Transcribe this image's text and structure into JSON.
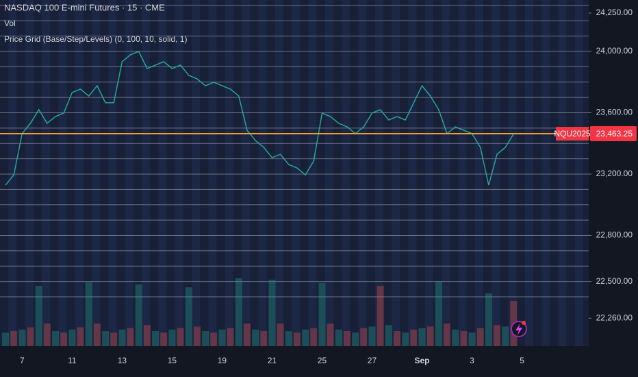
{
  "chart_data": {
    "type": "line",
    "title": "NASDAQ 100 E-mini Futures · 15 · CME",
    "volume_label": "Vol",
    "indicator_label": "Price Grid (Base/Step/Levels) (0, 100, 10, solid, 1)",
    "categories": [
      null,
      null,
      "7",
      null,
      null,
      null,
      null,
      null,
      "11",
      null,
      null,
      null,
      null,
      null,
      "13",
      null,
      null,
      null,
      null,
      null,
      "15",
      null,
      null,
      null,
      null,
      null,
      "19",
      null,
      null,
      null,
      null,
      null,
      "21",
      null,
      null,
      null,
      null,
      null,
      "25",
      null,
      null,
      null,
      null,
      null,
      "27",
      null,
      null,
      null,
      null,
      null,
      "Sep",
      null,
      null,
      null,
      null,
      null,
      "3",
      null,
      null,
      null,
      null,
      null,
      "5"
    ],
    "series": [
      {
        "name": "NQU2025",
        "color": "#26a69a",
        "values": [
          23128,
          23195,
          23464,
          23531,
          23620,
          23531,
          23575,
          23598,
          23732,
          23754,
          23709,
          23776,
          23665,
          23665,
          23933,
          23978,
          24000,
          23888,
          23911,
          23933,
          23888,
          23911,
          23844,
          23821,
          23776,
          23799,
          23776,
          23754,
          23709,
          23486,
          23419,
          23374,
          23307,
          23329,
          23262,
          23240,
          23195,
          23285,
          23598,
          23575,
          23531,
          23508,
          23464,
          23508,
          23598,
          23620,
          23553,
          23575,
          23553,
          23665,
          23776,
          23709,
          23620,
          23464,
          23508,
          23486,
          23464,
          23374,
          23128,
          23329,
          23374,
          23463.25,
          null
        ]
      }
    ],
    "volume": {
      "color": "#ef5350",
      "vlim": [
        0,
        100
      ],
      "values": [
        18,
        20,
        22,
        25,
        80,
        30,
        20,
        18,
        22,
        25,
        85,
        30,
        20,
        18,
        22,
        24,
        82,
        28,
        20,
        18,
        22,
        24,
        78,
        26,
        20,
        18,
        22,
        24,
        90,
        30,
        22,
        20,
        88,
        30,
        20,
        18,
        22,
        24,
        84,
        30,
        22,
        20,
        18,
        24,
        26,
        80,
        28,
        20,
        18,
        22,
        24,
        26,
        86,
        30,
        22,
        20,
        18,
        24,
        70,
        28,
        26,
        60,
        null
      ]
    },
    "current_price": {
      "value": 23463.25,
      "label": "23,463.25"
    },
    "price_line_color": "#f0a030",
    "ylim": [
      22078,
      24335
    ],
    "yticks": [
      {
        "value": 24250,
        "label": "24,250.00"
      },
      {
        "value": 24000,
        "label": "24,000.00"
      },
      {
        "value": 23600,
        "label": "23,600.00"
      },
      {
        "value": 23200,
        "label": "23,200.00"
      },
      {
        "value": 22800,
        "label": "22,800.00"
      },
      {
        "value": 22500,
        "label": "22,500.00"
      },
      {
        "value": 22260,
        "label": "22,260.00"
      }
    ],
    "grid_levels": [
      22400,
      22500,
      22600,
      22700,
      22800,
      22900,
      23000,
      23100,
      23200,
      23300,
      23400,
      23500,
      23600,
      23700,
      23800,
      23900,
      24000,
      24100,
      24200,
      24300
    ],
    "grid_color": "#b2b5be"
  }
}
